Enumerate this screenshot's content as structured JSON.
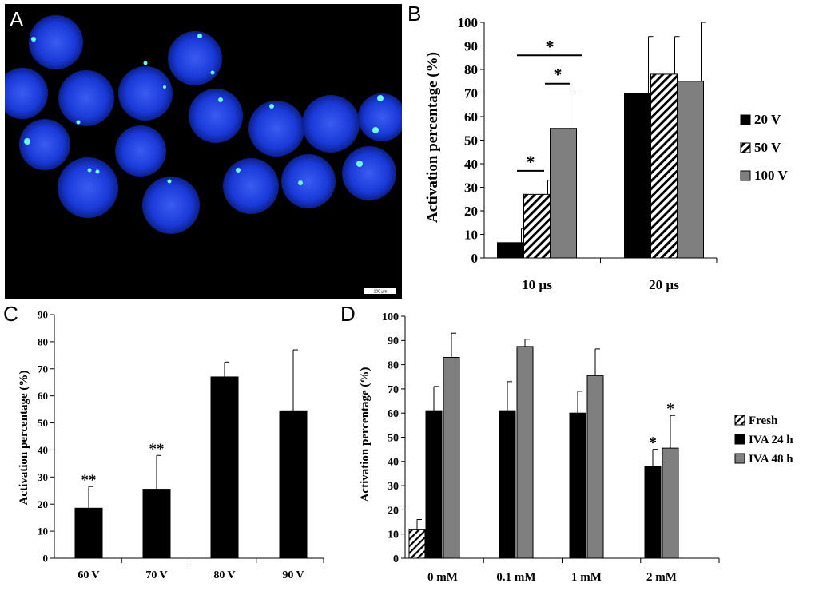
{
  "panels": {
    "A": {
      "letter": "A",
      "scale_bar": "100 µm"
    },
    "B": {
      "letter": "B"
    },
    "C": {
      "letter": "C"
    },
    "D": {
      "letter": "D"
    }
  },
  "colors": {
    "black": "#000000",
    "gray": "#7f7f7f",
    "hatch_bg": "#ffffff",
    "embryo": "#1a3ad9"
  },
  "chart_data": [
    {
      "panel": "B",
      "type": "bar",
      "categories": [
        "10 µs",
        "20 µs"
      ],
      "series": [
        {
          "name": "20 V",
          "values": [
            6.5,
            70
          ],
          "errors": [
            6,
            24
          ],
          "fill": "black"
        },
        {
          "name": "50 V",
          "values": [
            27,
            78
          ],
          "errors": [
            6,
            16
          ],
          "fill": "hatch"
        },
        {
          "name": "100 V",
          "values": [
            55,
            75
          ],
          "errors": [
            15,
            25
          ],
          "fill": "gray"
        }
      ],
      "ylabel": "Activation percentage (%)",
      "ylim": [
        0,
        100
      ],
      "yticks": [
        0,
        10,
        20,
        30,
        40,
        50,
        60,
        70,
        80,
        90,
        100
      ],
      "legend": "right",
      "annotations": [
        "*",
        "*",
        "*"
      ]
    },
    {
      "panel": "C",
      "type": "bar",
      "categories": [
        "60 V",
        "70 V",
        "80 V",
        "90 V"
      ],
      "series": [
        {
          "values": [
            18.5,
            25.5,
            67,
            54.5
          ],
          "errors": [
            8,
            12.5,
            5.5,
            22.5
          ],
          "fill": "black"
        }
      ],
      "ylabel": "Activation percentage (%)",
      "ylim": [
        0,
        90
      ],
      "yticks": [
        0,
        10,
        20,
        30,
        40,
        50,
        60,
        70,
        80,
        90
      ],
      "annotations": [
        "**",
        "**"
      ]
    },
    {
      "panel": "D",
      "type": "bar",
      "categories": [
        "0 mM",
        "0.1 mM",
        "1 mM",
        "2 mM"
      ],
      "series": [
        {
          "name": "Fresh",
          "values": [
            12,
            null,
            null,
            null
          ],
          "errors": [
            4,
            null,
            null,
            null
          ],
          "fill": "hatch"
        },
        {
          "name": "IVA 24 h",
          "values": [
            61,
            61,
            60,
            38
          ],
          "errors": [
            10,
            12,
            9,
            7
          ],
          "fill": "black"
        },
        {
          "name": "IVA 48 h",
          "values": [
            83,
            87.5,
            75.5,
            45.5
          ],
          "errors": [
            10,
            3,
            11,
            13.5
          ],
          "fill": "gray"
        }
      ],
      "ylabel": "Activation percentage (%)",
      "ylim": [
        0,
        100
      ],
      "yticks": [
        0,
        10,
        20,
        30,
        40,
        50,
        60,
        70,
        80,
        90,
        100
      ],
      "legend": "right",
      "annotations": [
        "*",
        "*"
      ]
    }
  ]
}
